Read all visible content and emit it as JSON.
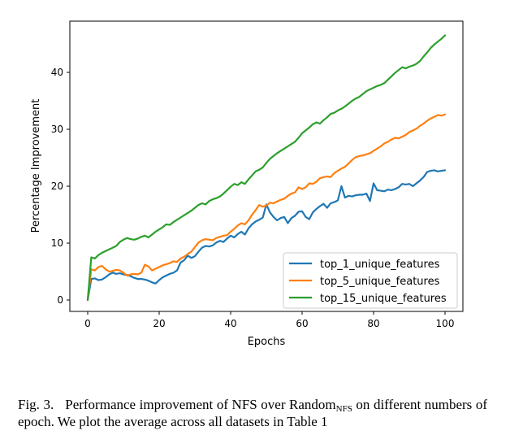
{
  "caption": {
    "label": "Fig. 3.",
    "text_before": "Performance improvement of NFS over Random",
    "subscript": "NFS",
    "text_after": " on different numbers of epoch. We plot the average across all datasets in Table 1"
  },
  "chart_data": {
    "type": "line",
    "xlabel": "Epochs",
    "ylabel": "Percentage Improvement",
    "xlim": [
      -5,
      105
    ],
    "ylim": [
      -2,
      49
    ],
    "xticks": [
      "0",
      "20",
      "40",
      "60",
      "80",
      "100"
    ],
    "yticks": [
      "0",
      "10",
      "20",
      "30",
      "40"
    ],
    "grid": false,
    "legend_position": "bottom-right",
    "x": [
      0,
      1,
      2,
      3,
      4,
      5,
      6,
      7,
      8,
      9,
      10,
      11,
      12,
      13,
      14,
      15,
      16,
      17,
      18,
      19,
      20,
      21,
      22,
      23,
      24,
      25,
      26,
      27,
      28,
      29,
      30,
      31,
      32,
      33,
      34,
      35,
      36,
      37,
      38,
      39,
      40,
      41,
      42,
      43,
      44,
      45,
      46,
      47,
      48,
      49,
      50,
      51,
      52,
      53,
      54,
      55,
      56,
      57,
      58,
      59,
      60,
      61,
      62,
      63,
      64,
      65,
      66,
      67,
      68,
      69,
      70,
      71,
      72,
      73,
      74,
      75,
      76,
      77,
      78,
      79,
      80,
      81,
      82,
      83,
      84,
      85,
      86,
      87,
      88,
      89,
      90,
      91,
      92,
      93,
      94,
      95,
      96,
      97,
      98,
      99,
      100
    ],
    "series": [
      {
        "name": "top_1_unique_features",
        "color": "#1f77b4",
        "values": [
          0,
          3.7,
          3.8,
          3.5,
          3.6,
          4.0,
          4.5,
          4.8,
          4.6,
          4.7,
          4.5,
          4.4,
          4.2,
          3.9,
          3.7,
          3.7,
          3.6,
          3.4,
          3.1,
          2.9,
          3.5,
          4.0,
          4.3,
          4.6,
          4.8,
          5.2,
          6.6,
          7.0,
          7.8,
          7.4,
          7.7,
          8.5,
          9.2,
          9.5,
          9.4,
          9.6,
          10.1,
          10.4,
          10.2,
          10.8,
          11.3,
          11.0,
          11.6,
          12.0,
          11.5,
          12.6,
          13.3,
          13.8,
          14.1,
          14.5,
          16.8,
          15.4,
          14.6,
          14.0,
          14.4,
          14.6,
          13.5,
          14.4,
          14.8,
          15.5,
          15.6,
          14.6,
          14.2,
          15.4,
          16.0,
          16.5,
          16.9,
          16.2,
          17.0,
          17.2,
          17.5,
          20.0,
          18.0,
          18.3,
          18.2,
          18.4,
          18.5,
          18.5,
          18.7,
          17.4,
          20.5,
          19.3,
          19.2,
          19.1,
          19.4,
          19.3,
          19.5,
          19.8,
          20.4,
          20.3,
          20.4,
          20.0,
          20.5,
          21.0,
          21.6,
          22.5,
          22.7,
          22.8,
          22.6,
          22.7,
          22.8
        ]
      },
      {
        "name": "top_5_unique_features",
        "color": "#ff7f0e",
        "values": [
          0,
          5.4,
          5.2,
          5.8,
          6.0,
          5.4,
          5.0,
          5.1,
          5.3,
          5.2,
          4.8,
          4.3,
          4.5,
          4.6,
          4.5,
          4.8,
          6.2,
          5.9,
          5.2,
          5.5,
          5.8,
          6.1,
          6.3,
          6.5,
          6.8,
          6.7,
          7.3,
          7.6,
          8.1,
          8.5,
          9.3,
          10.1,
          10.5,
          10.7,
          10.6,
          10.5,
          10.9,
          11.1,
          11.3,
          11.4,
          12.0,
          12.5,
          13.1,
          13.5,
          13.3,
          14.0,
          15.0,
          15.8,
          16.7,
          16.4,
          16.6,
          17.1,
          17.0,
          17.3,
          17.6,
          17.8,
          18.3,
          18.7,
          18.9,
          19.8,
          19.5,
          19.8,
          20.5,
          20.4,
          20.8,
          21.4,
          21.6,
          21.7,
          21.6,
          22.3,
          22.7,
          23.1,
          23.4,
          24.0,
          24.6,
          25.1,
          25.3,
          25.4,
          25.6,
          25.8,
          26.2,
          26.6,
          27.0,
          27.5,
          27.8,
          28.2,
          28.5,
          28.4,
          28.7,
          29.0,
          29.5,
          29.8,
          30.1,
          30.6,
          31.0,
          31.5,
          31.9,
          32.2,
          32.5,
          32.4,
          32.6
        ]
      },
      {
        "name": "top_15_unique_features",
        "color": "#2ca02c",
        "values": [
          0,
          7.5,
          7.3,
          7.9,
          8.3,
          8.6,
          8.9,
          9.2,
          9.5,
          10.2,
          10.6,
          10.9,
          10.7,
          10.6,
          10.8,
          11.1,
          11.3,
          11.0,
          11.5,
          12.0,
          12.4,
          12.8,
          13.3,
          13.2,
          13.7,
          14.1,
          14.5,
          14.9,
          15.3,
          15.7,
          16.2,
          16.7,
          17.0,
          16.8,
          17.4,
          17.7,
          17.9,
          18.2,
          18.7,
          19.3,
          19.9,
          20.4,
          20.2,
          20.7,
          20.4,
          21.2,
          21.9,
          22.6,
          22.9,
          23.3,
          24.1,
          24.8,
          25.3,
          25.8,
          26.2,
          26.6,
          27.0,
          27.4,
          27.8,
          28.5,
          29.3,
          29.8,
          30.3,
          30.9,
          31.2,
          31.0,
          31.6,
          32.1,
          32.7,
          32.9,
          33.3,
          33.6,
          34.0,
          34.5,
          35.0,
          35.4,
          35.7,
          36.2,
          36.7,
          37.0,
          37.3,
          37.6,
          37.8,
          38.1,
          38.7,
          39.3,
          39.9,
          40.4,
          40.9,
          40.7,
          41.0,
          41.2,
          41.5,
          42.0,
          42.8,
          43.5,
          44.3,
          44.9,
          45.4,
          45.9,
          46.5
        ]
      }
    ]
  }
}
